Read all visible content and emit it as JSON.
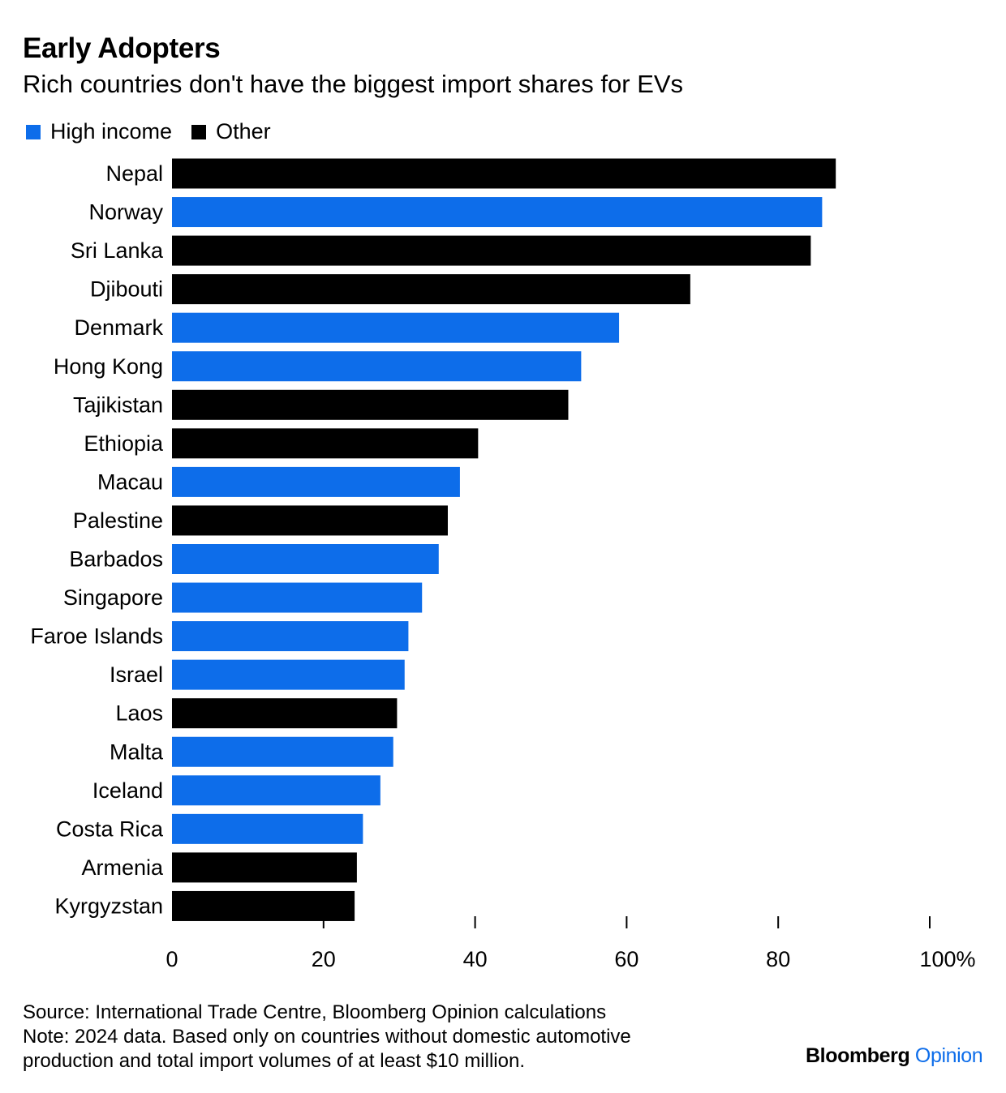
{
  "header": {
    "title": "Early Adopters",
    "subtitle": "Rich countries don't have the biggest import shares for EVs"
  },
  "legend": {
    "items": [
      {
        "label": "High income",
        "color": "#0d6dea"
      },
      {
        "label": "Other",
        "color": "#000000"
      }
    ]
  },
  "chart_data": {
    "type": "bar",
    "orientation": "horizontal",
    "title": "Early Adopters",
    "subtitle": "Rich countries don't have the biggest import shares for EVs",
    "xlim": [
      0,
      100
    ],
    "x_ticks": [
      "0",
      "20",
      "40",
      "60",
      "80",
      "100%"
    ],
    "grid": false,
    "legend_position": "top-left",
    "colors": {
      "High income": "#0d6dea",
      "Other": "#000000"
    },
    "categories": [
      "Nepal",
      "Norway",
      "Sri Lanka",
      "Djibouti",
      "Denmark",
      "Hong Kong",
      "Tajikistan",
      "Ethiopia",
      "Macau",
      "Palestine",
      "Barbados",
      "Singapore",
      "Faroe Islands",
      "Israel",
      "Laos",
      "Malta",
      "Iceland",
      "Costa Rica",
      "Armenia",
      "Kyrgyzstan"
    ],
    "values": [
      87.6,
      85.8,
      84.3,
      68.4,
      59.0,
      54.0,
      52.3,
      40.4,
      38.0,
      36.4,
      35.2,
      33.0,
      31.2,
      30.7,
      29.7,
      29.2,
      27.5,
      25.2,
      24.4,
      24.1
    ],
    "group": [
      "Other",
      "High income",
      "Other",
      "Other",
      "High income",
      "High income",
      "Other",
      "Other",
      "High income",
      "Other",
      "High income",
      "High income",
      "High income",
      "High income",
      "Other",
      "High income",
      "High income",
      "High income",
      "Other",
      "Other"
    ]
  },
  "footer": {
    "source": "Source: International Trade Centre, Bloomberg Opinion calculations",
    "note_line1": "Note: 2024 data. Based only on countries without domestic automotive",
    "note_line2": "production and total import volumes of at least $10 million.",
    "brand_main": "Bloomberg",
    "brand_accent": "Opinion"
  }
}
